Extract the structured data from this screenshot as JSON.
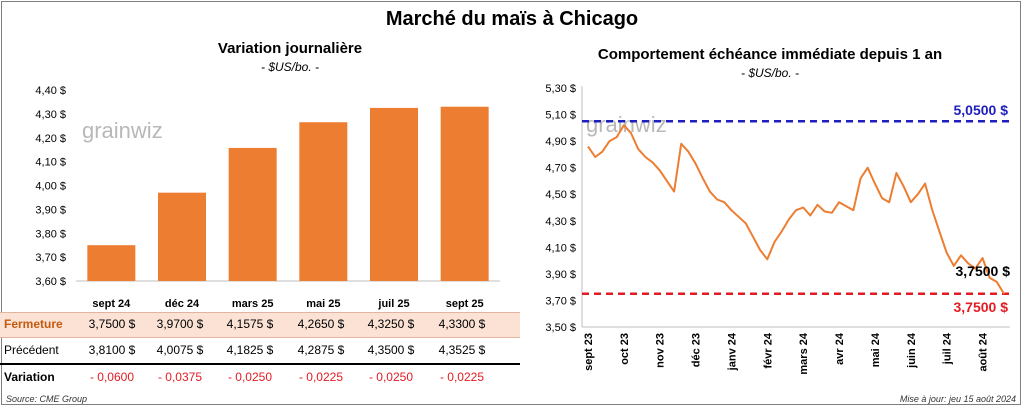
{
  "main_title": "Marché du maïs à Chicago",
  "left": {
    "title": "Variation journalière",
    "unit": "- $US/bo. -",
    "watermark": "grainwiz",
    "table": {
      "rows": [
        {
          "label": "Fermeture",
          "values": [
            "3,7500 $",
            "3,9700 $",
            "4,1575 $",
            "4,2650 $",
            "4,3250 $",
            "4,3300 $"
          ]
        },
        {
          "label": "Précédent",
          "values": [
            "3,8100 $",
            "4,0075 $",
            "4,1825 $",
            "4,2875 $",
            "4,3500 $",
            "4,3525 $"
          ]
        },
        {
          "label": "Variation",
          "values": [
            "- 0,0600",
            "- 0,0375",
            "- 0,0250",
            "- 0,0225",
            "- 0,0250",
            "- 0,0225"
          ]
        }
      ]
    }
  },
  "right": {
    "title": "Comportement  échéance immédiate depuis 1 an",
    "unit": "- $US/bo. -",
    "watermark": "grainwiz"
  },
  "footer": {
    "source": "Source: CME Group",
    "update": "Mise à jour: jeu 15 août 2024"
  },
  "colors": {
    "bar": "#ed7d31",
    "highlight_row": "#fbe2d5",
    "high_line": "#1f1fbf",
    "low_line": "#e31b23",
    "negative": "#e31b23",
    "line": "#ed7d31"
  },
  "chart_data": [
    {
      "type": "bar",
      "categories": [
        "sept 24",
        "déc 24",
        "mars 25",
        "mai 25",
        "juil 25",
        "sept 25"
      ],
      "values": [
        3.75,
        3.97,
        4.1575,
        4.265,
        4.325,
        4.33
      ],
      "ylim": [
        3.6,
        4.4
      ],
      "yticks": [
        "3,60 $",
        "3,70 $",
        "3,80 $",
        "3,90 $",
        "4,00 $",
        "4,10 $",
        "4,20 $",
        "4,30 $",
        "4,40 $"
      ],
      "grid": false
    },
    {
      "type": "line",
      "ylim": [
        3.5,
        5.3
      ],
      "yticks": [
        "3,50 $",
        "3,70 $",
        "3,90 $",
        "4,10 $",
        "4,30 $",
        "4,50 $",
        "4,70 $",
        "4,90 $",
        "5,10 $",
        "5,30 $"
      ],
      "xticks": [
        "sept 23",
        "oct 23",
        "nov 23",
        "déc 23",
        "janv 24",
        "févr 24",
        "mars 24",
        "avr 24",
        "mai 24",
        "juin 24",
        "juil 24",
        "août 24"
      ],
      "series": [
        {
          "x": [
            0,
            0.2,
            0.4,
            0.6,
            0.8,
            1.0,
            1.2,
            1.4,
            1.6,
            1.8,
            2.0,
            2.2,
            2.4,
            2.6,
            2.8,
            3.0,
            3.2,
            3.4,
            3.6,
            3.8,
            4.0,
            4.2,
            4.4,
            4.6,
            4.8,
            5.0,
            5.2,
            5.4,
            5.6,
            5.8,
            6.0,
            6.2,
            6.4,
            6.6,
            6.8,
            7.0,
            7.2,
            7.4,
            7.6,
            7.8,
            8.0,
            8.2,
            8.4,
            8.6,
            8.8,
            9.0,
            9.2,
            9.4,
            9.6,
            9.8,
            10.0,
            10.2,
            10.4,
            10.6,
            10.8,
            11.0,
            11.2,
            11.4,
            11.6
          ],
          "values": [
            4.86,
            4.78,
            4.82,
            4.9,
            4.93,
            5.02,
            4.96,
            4.84,
            4.78,
            4.74,
            4.68,
            4.6,
            4.52,
            4.88,
            4.82,
            4.73,
            4.62,
            4.52,
            4.46,
            4.44,
            4.38,
            4.33,
            4.28,
            4.18,
            4.08,
            4.01,
            4.14,
            4.22,
            4.31,
            4.38,
            4.4,
            4.34,
            4.42,
            4.37,
            4.36,
            4.44,
            4.41,
            4.38,
            4.62,
            4.7,
            4.58,
            4.47,
            4.44,
            4.66,
            4.56,
            4.44,
            4.5,
            4.58,
            4.38,
            4.22,
            4.06,
            3.96,
            4.04,
            3.98,
            3.94,
            4.02,
            3.87,
            3.84,
            3.75
          ]
        }
      ],
      "reference_lines": [
        {
          "value": 5.05,
          "label": "5,0500 $"
        },
        {
          "value": 3.75,
          "label": "3,7500 $"
        }
      ],
      "last_value_label": "3,7500 $"
    }
  ]
}
